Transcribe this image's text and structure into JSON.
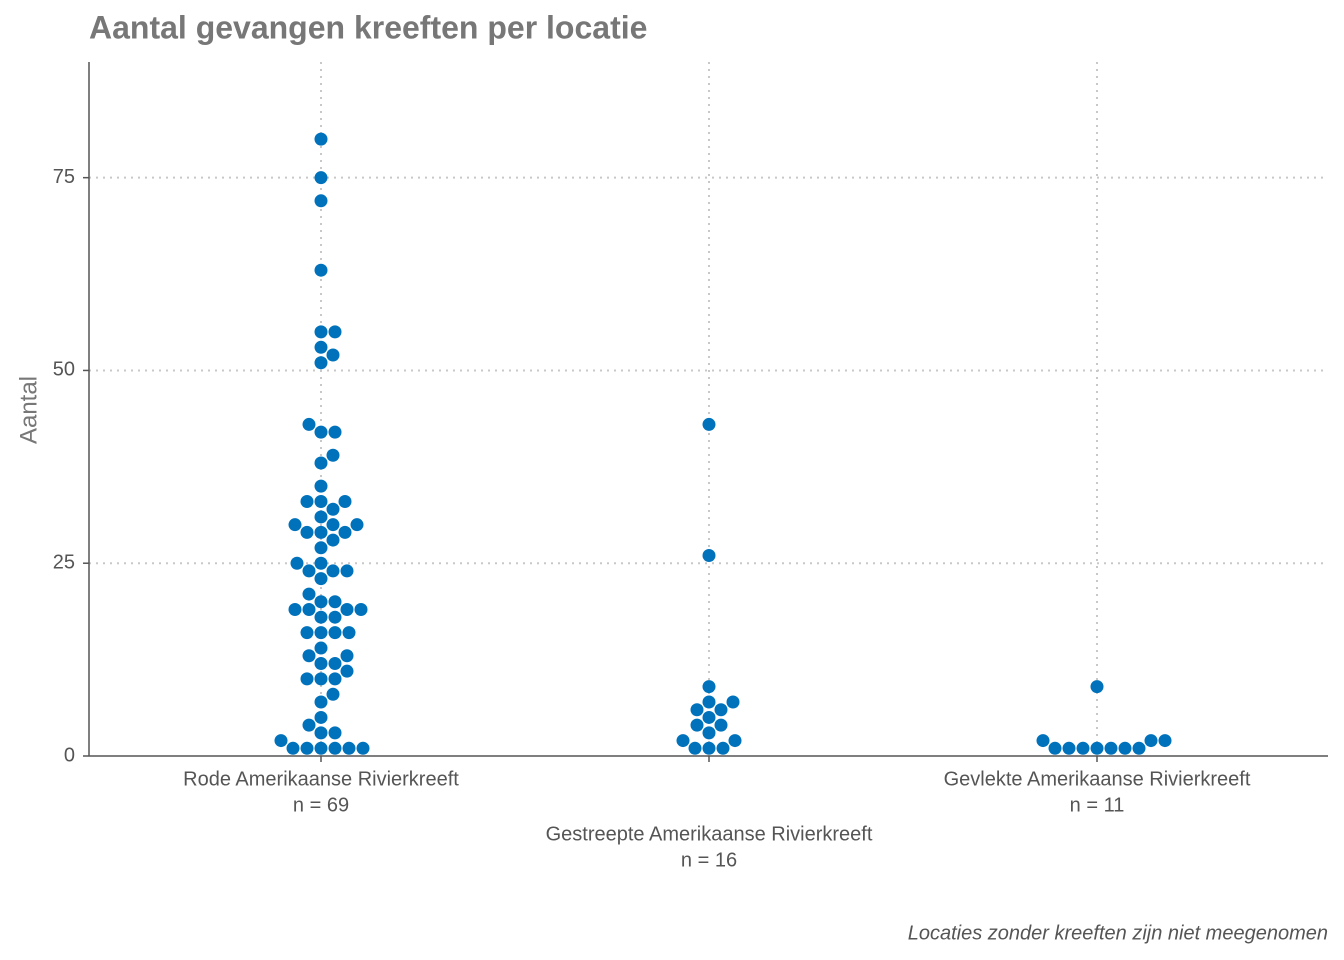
{
  "chart_data": {
    "type": "strip",
    "title": "Aantal gevangen kreeften per locatie",
    "y_label": "Aantal",
    "caption": "Locaties zonder kreeften zijn niet meegenomen",
    "categories": [
      "Rode Amerikaanse Rivierkreeft",
      "Gestreepte Amerikaanse Rivierkreeft",
      "Gevlekte Amerikaanse Rivierkreeft"
    ],
    "n_labels": [
      "n = 69",
      "n = 16",
      "n = 11"
    ],
    "values": [
      [
        80,
        75,
        72,
        63,
        55,
        55,
        52,
        53,
        51,
        43,
        42,
        42,
        39,
        38,
        35,
        33,
        33,
        33,
        32,
        31,
        30,
        30,
        30,
        29,
        29,
        29,
        28,
        27,
        25,
        25,
        24,
        24,
        24,
        23,
        21,
        20,
        20,
        19,
        19,
        19,
        19,
        18,
        18,
        16,
        16,
        16,
        16,
        14,
        13,
        13,
        12,
        12,
        11,
        10,
        10,
        10,
        8,
        7,
        5,
        4,
        3,
        3,
        2,
        1,
        1,
        1,
        1,
        1,
        1
      ],
      [
        43,
        26,
        9,
        7,
        7,
        6,
        6,
        5,
        4,
        4,
        3,
        2,
        2,
        1,
        1,
        1
      ],
      [
        9,
        2,
        2,
        2,
        1,
        1,
        1,
        1,
        1,
        1,
        1
      ]
    ],
    "color": "#0072bb",
    "ylim": [
      0,
      90
    ],
    "yticks": [
      0,
      25,
      50,
      75
    ],
    "grid": true
  }
}
